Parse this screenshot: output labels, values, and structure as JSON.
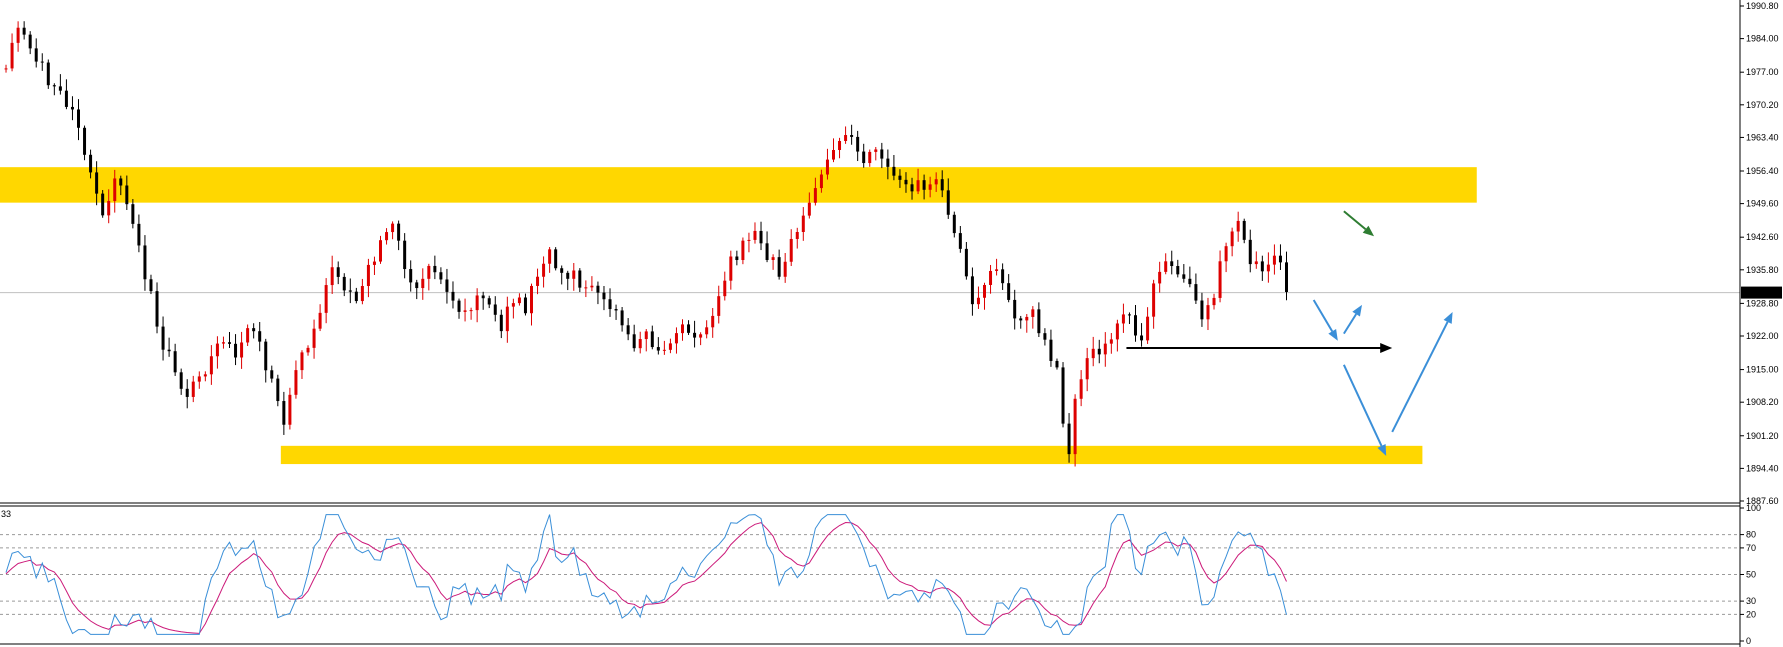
{
  "window": {
    "indicator_corner_label": "33"
  },
  "colors": {
    "bull_candle": "#dd0000",
    "bear_candle": "#000000",
    "zone_fill": "#ffd700",
    "rsi_fast": "#3a8fd8",
    "rsi_slow": "#cc1a7a",
    "arrow_blue": "#3b8fd8",
    "arrow_green": "#2e7d32",
    "arrow_black": "#000000",
    "current_price_bg": "#000000"
  },
  "current_price_label": "1931.05",
  "chart_data": [
    {
      "type": "candlestick",
      "ylim": [
        1887.6,
        1990.8
      ],
      "y_ticks": [
        "1990.80",
        "1984.00",
        "1977.00",
        "1970.20",
        "1963.40",
        "1956.40",
        "1949.60",
        "1942.60",
        "1935.80",
        "1928.80",
        "1922.00",
        "1915.00",
        "1908.20",
        "1901.20",
        "1894.40",
        "1887.60"
      ],
      "current_price": 1931.05,
      "bar_count": 205,
      "path_anchors": [
        [
          0,
          1978
        ],
        [
          2,
          1987
        ],
        [
          4,
          1983
        ],
        [
          7,
          1975
        ],
        [
          9,
          1972
        ],
        [
          11,
          1968
        ],
        [
          13,
          1960
        ],
        [
          16,
          1948
        ],
        [
          18,
          1955
        ],
        [
          20,
          1949
        ],
        [
          22,
          1940
        ],
        [
          24,
          1930
        ],
        [
          26,
          1920
        ],
        [
          28,
          1915
        ],
        [
          30,
          1910
        ],
        [
          32,
          1912
        ],
        [
          34,
          1919
        ],
        [
          36,
          1921
        ],
        [
          38,
          1918
        ],
        [
          40,
          1924
        ],
        [
          42,
          1920
        ],
        [
          44,
          1912
        ],
        [
          46,
          1905
        ],
        [
          48,
          1915
        ],
        [
          50,
          1920
        ],
        [
          52,
          1928
        ],
        [
          54,
          1935
        ],
        [
          56,
          1933
        ],
        [
          58,
          1930
        ],
        [
          60,
          1936
        ],
        [
          62,
          1942
        ],
        [
          64,
          1945
        ],
        [
          66,
          1937
        ],
        [
          68,
          1932
        ],
        [
          70,
          1938
        ],
        [
          72,
          1933
        ],
        [
          74,
          1928
        ],
        [
          76,
          1926
        ],
        [
          78,
          1930
        ],
        [
          80,
          1928
        ],
        [
          82,
          1924
        ],
        [
          84,
          1930
        ],
        [
          86,
          1928
        ],
        [
          88,
          1935
        ],
        [
          90,
          1939
        ],
        [
          92,
          1935
        ],
        [
          94,
          1936
        ],
        [
          96,
          1931
        ],
        [
          98,
          1932
        ],
        [
          100,
          1929
        ],
        [
          102,
          1925
        ],
        [
          104,
          1919
        ],
        [
          106,
          1922
        ],
        [
          108,
          1918
        ],
        [
          110,
          1921
        ],
        [
          112,
          1924
        ],
        [
          114,
          1922
        ],
        [
          116,
          1925
        ],
        [
          118,
          1930
        ],
        [
          120,
          1937
        ],
        [
          122,
          1941
        ],
        [
          124,
          1943
        ],
        [
          126,
          1939
        ],
        [
          128,
          1935
        ],
        [
          130,
          1942
        ],
        [
          132,
          1947
        ],
        [
          134,
          1953
        ],
        [
          136,
          1958
        ],
        [
          138,
          1964
        ],
        [
          140,
          1963
        ],
        [
          142,
          1959
        ],
        [
          144,
          1961
        ],
        [
          146,
          1957
        ],
        [
          148,
          1955
        ],
        [
          150,
          1952
        ],
        [
          152,
          1954
        ],
        [
          154,
          1956
        ],
        [
          156,
          1946
        ],
        [
          158,
          1941
        ],
        [
          160,
          1930
        ],
        [
          162,
          1932
        ],
        [
          164,
          1936
        ],
        [
          166,
          1928
        ],
        [
          168,
          1924
        ],
        [
          170,
          1926
        ],
        [
          172,
          1920
        ],
        [
          174,
          1915
        ],
        [
          175,
          1903
        ],
        [
          176,
          1897
        ],
        [
          177,
          1910
        ],
        [
          178,
          1914
        ],
        [
          180,
          1918
        ],
        [
          182,
          1921
        ],
        [
          184,
          1924
        ],
        [
          186,
          1926
        ],
        [
          188,
          1921
        ],
        [
          190,
          1934
        ],
        [
          192,
          1937
        ],
        [
          194,
          1934
        ],
        [
          196,
          1933
        ],
        [
          198,
          1926
        ],
        [
          200,
          1931
        ],
        [
          202,
          1942
        ],
        [
          204,
          1945
        ],
        [
          206,
          1938
        ],
        [
          208,
          1937
        ],
        [
          210,
          1939
        ],
        [
          211,
          1937
        ],
        [
          212,
          1931
        ]
      ],
      "zones": [
        {
          "name": "resistance",
          "low": 1949.8,
          "high": 1957.2,
          "from_bar": 0,
          "to_bar": 244
        },
        {
          "name": "support",
          "low": 1895.3,
          "high": 1899.1,
          "from_bar": 46,
          "to_bar": 235
        }
      ],
      "horizontal_line": {
        "price": 1919.5,
        "from_bar": 186,
        "to_bar": 230
      },
      "arrows": [
        {
          "name": "arrow-down-green",
          "from": [
            222,
            1948
          ],
          "to": [
            227,
            1942.8
          ],
          "color": "arrow_green"
        },
        {
          "name": "arrow-down-blue-short",
          "from": [
            217,
            1929.5
          ],
          "to": [
            221,
            1921
          ]
        },
        {
          "name": "arrow-up-blue-short",
          "from": [
            222,
            1922.5
          ],
          "to": [
            225,
            1928.5
          ]
        },
        {
          "name": "arrow-down-blue-long",
          "from": [
            222,
            1916
          ],
          "to": [
            229,
            1897
          ]
        },
        {
          "name": "arrow-up-blue-long",
          "from": [
            230,
            1902
          ],
          "to": [
            240,
            1927
          ]
        }
      ]
    },
    {
      "type": "line",
      "indicator": "RSI",
      "ylim": [
        0,
        100
      ],
      "y_ticks": [
        "100",
        "80",
        "70",
        "50",
        "30",
        "20",
        "0"
      ],
      "levels": [
        80,
        70,
        50,
        30,
        20
      ],
      "series": [
        {
          "key": "fast",
          "values": []
        },
        {
          "key": "slow",
          "values": []
        }
      ]
    }
  ]
}
